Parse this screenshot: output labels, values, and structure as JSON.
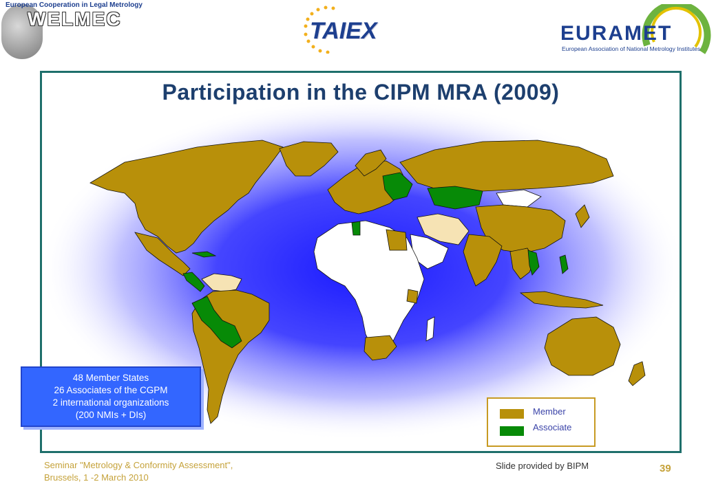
{
  "header": {
    "welmec": {
      "tagline": "European Cooperation in Legal Metrology",
      "name": "WELMEC"
    },
    "taiex": {
      "name": "TAIEX"
    },
    "euramet": {
      "name": "EURAMET",
      "subtitle": "European Association of National Metrology Institutes"
    }
  },
  "slide": {
    "title": "Participation in the CIPM MRA (2009)"
  },
  "info_box": {
    "lines": [
      "48 Member States",
      "26 Associates of the CGPM",
      "2 international organizations",
      "(200 NMIs + DIs)"
    ]
  },
  "legend": {
    "items": [
      {
        "label": "Member",
        "color": "#b8900a"
      },
      {
        "label": "Associate",
        "color": "#078a07"
      }
    ]
  },
  "colors": {
    "member": "#b8900a",
    "associate": "#078a07",
    "other_country": "#ffffff",
    "light_participant": "#f6e3b4",
    "glow": "#2b2bff",
    "frame": "#1e6f6b",
    "title": "#1d3f6e"
  },
  "footer": {
    "seminar_line1": "Seminar \"Metrology & Conformity Assessment\",",
    "seminar_line2": "Brussels, 1 -2 March 2010",
    "credit": "Slide provided by BIPM",
    "page_number": "39"
  }
}
